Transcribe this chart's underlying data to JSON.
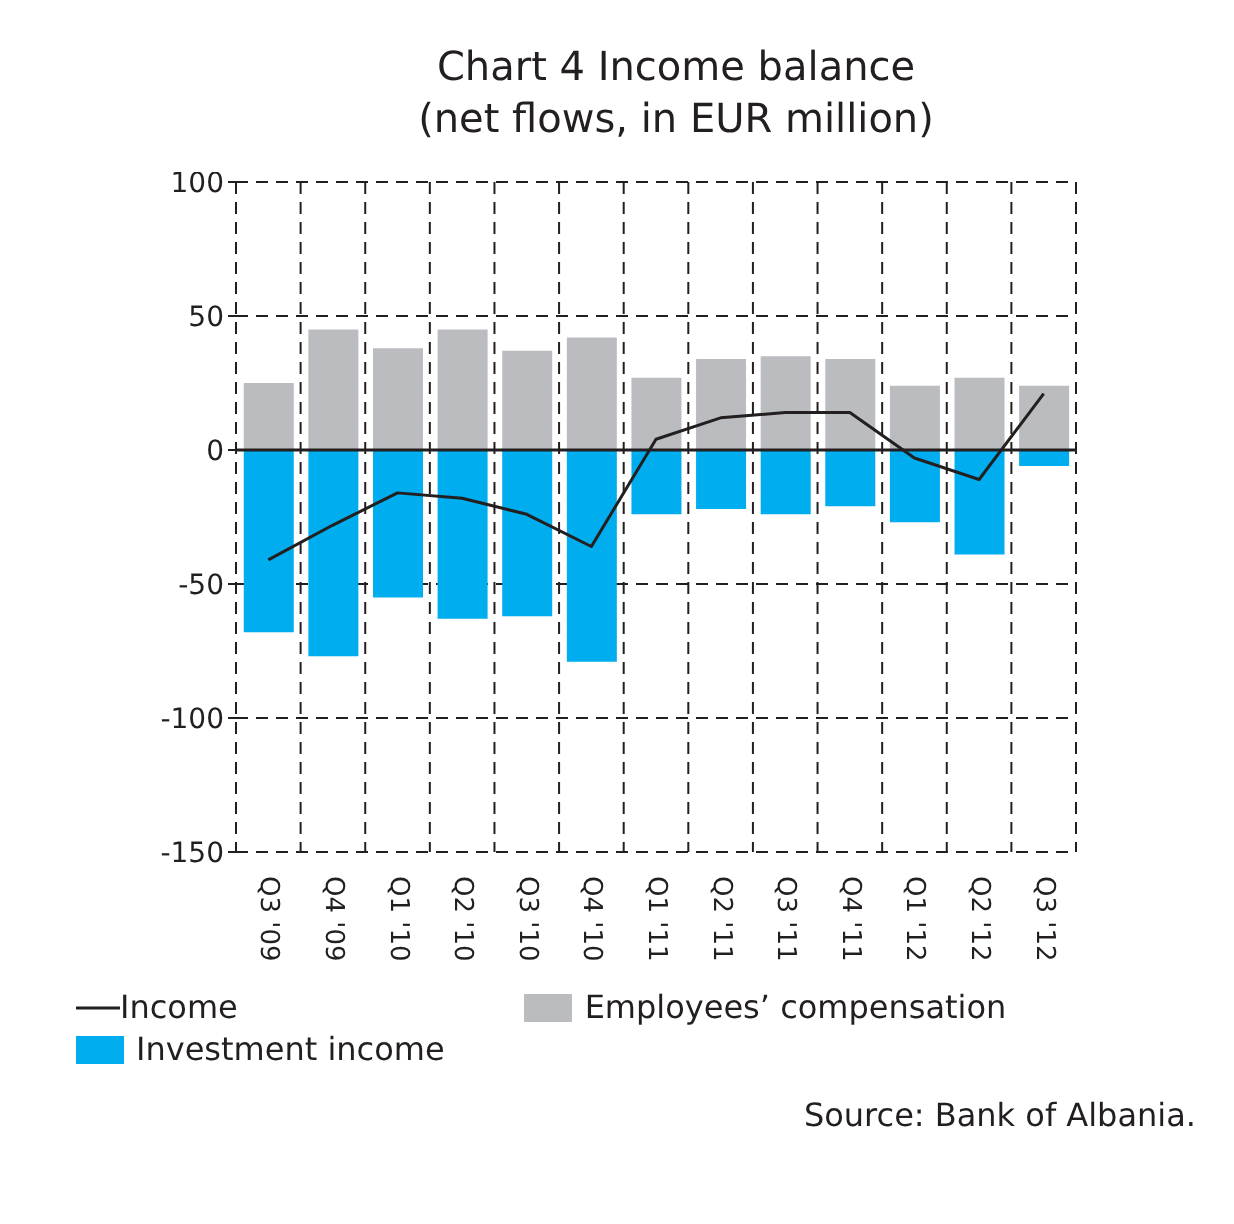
{
  "chart_data": {
    "type": "bar",
    "title": "Chart 4 Income balance",
    "subtitle": "(net flows, in EUR million)",
    "categories": [
      "Q3 '09",
      "Q4 '09",
      "Q1 '10",
      "Q2 '10",
      "Q3 '10",
      "Q4 '10",
      "Q1 '11",
      "Q2 '11",
      "Q3 '11",
      "Q4 '11",
      "Q1 '12",
      "Q2 '12",
      "Q3 '12"
    ],
    "series": [
      {
        "name": "Employees’ compensation",
        "color": "#bbbcc0",
        "values": [
          25,
          45,
          38,
          45,
          37,
          42,
          27,
          34,
          35,
          34,
          24,
          27,
          24
        ]
      },
      {
        "name": "Investment income",
        "color": "#00adee",
        "values": [
          -68,
          -77,
          -55,
          -63,
          -62,
          -79,
          -24,
          -22,
          -24,
          -21,
          -27,
          -39,
          -6
        ]
      },
      {
        "name": "Income",
        "type": "line",
        "color": "#231f20",
        "values": [
          -41,
          -28,
          -16,
          -18,
          -24,
          -36,
          4,
          12,
          14,
          14,
          -3,
          -11,
          21
        ]
      }
    ],
    "stacked": true,
    "ylim": [
      -150,
      100
    ],
    "yticks": [
      -150,
      -100,
      -50,
      0,
      50,
      100
    ],
    "grid": true,
    "legend": "bottom",
    "marker": "none",
    "line_style": "solid",
    "annotations": [
      "Source: Bank of Albania."
    ]
  }
}
